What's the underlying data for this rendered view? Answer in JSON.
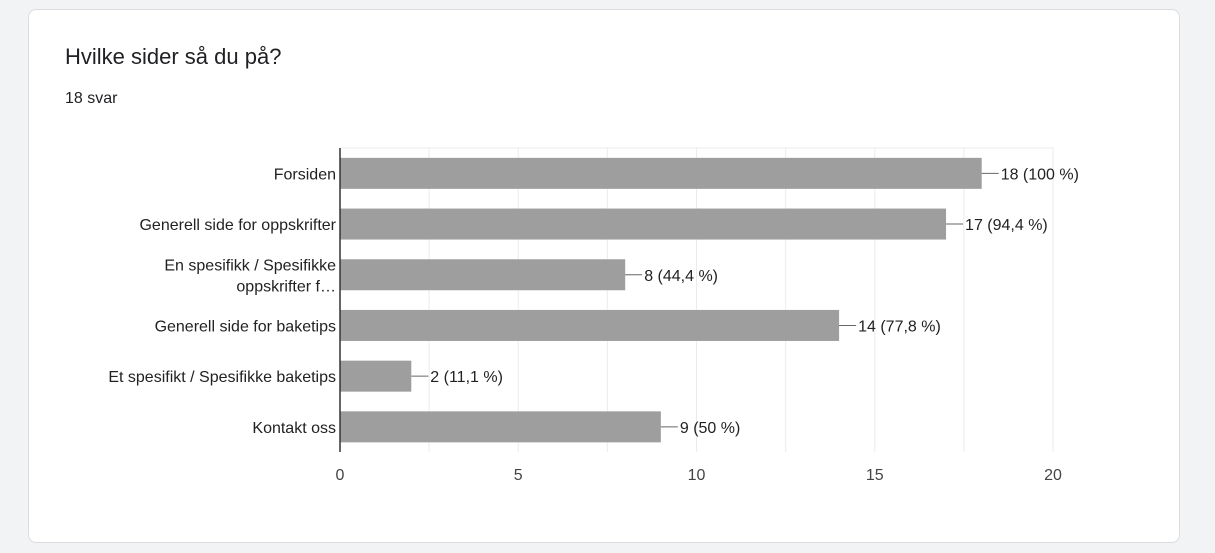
{
  "question": {
    "title": "Hvilke sider så du på?",
    "responses": "18 svar"
  },
  "colors": {
    "bar": "#9e9e9e",
    "grid": "#ebebeb",
    "axis": "#333333",
    "text": "#222222"
  },
  "chart_data": {
    "type": "bar",
    "orientation": "horizontal",
    "categories": [
      "Forsiden",
      "Generell side for oppskrifter",
      "En spesifikk / Spesifikke oppskrifter f…",
      "Generell side for baketips",
      "Et spesifikt / Spesifikke baketips",
      "Kontakt oss"
    ],
    "category_lines": [
      [
        "Forsiden"
      ],
      [
        "Generell side for oppskrifter"
      ],
      [
        "En spesifikk / Spesifikke",
        "oppskrifter f…"
      ],
      [
        "Generell side for baketips"
      ],
      [
        "Et spesifikt / Spesifikke baketips"
      ],
      [
        "Kontakt oss"
      ]
    ],
    "values": [
      18,
      17,
      8,
      14,
      2,
      9
    ],
    "data_labels": [
      "18 (100 %)",
      "17 (94,4 %)",
      "8 (44,4 %)",
      "14 (77,8 %)",
      "2 (11,1 %)",
      "9 (50 %)"
    ],
    "xlim": [
      0,
      20
    ],
    "x_ticks": [
      0,
      5,
      10,
      15,
      20
    ],
    "minor_step": 2.5,
    "grid": true,
    "legend": "none"
  }
}
